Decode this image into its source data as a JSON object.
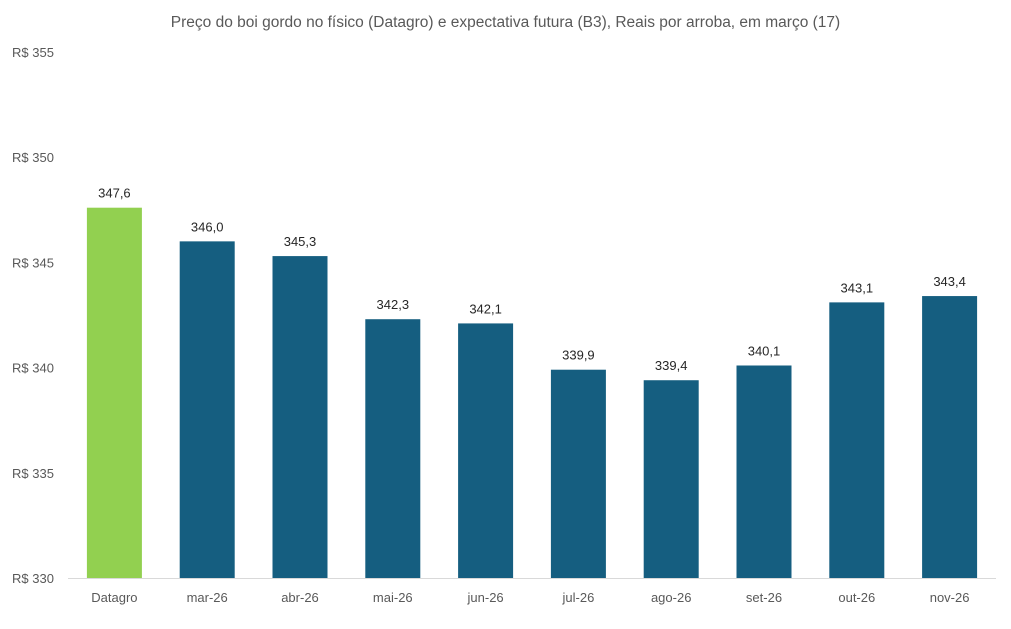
{
  "chart_data": {
    "type": "bar",
    "title": "Preço do boi gordo no físico (Datagro)  e expectativa futura (B3), Reais por arroba, em março (17)",
    "xlabel": "",
    "ylabel": "",
    "ylim": [
      330,
      355
    ],
    "yticks": [
      330,
      335,
      340,
      345,
      350,
      355
    ],
    "ytick_labels": [
      "R$ 330",
      "R$ 335",
      "R$ 340",
      "R$ 345",
      "R$ 350",
      "R$ 355"
    ],
    "categories": [
      "Datagro",
      "mar-26",
      "abr-26",
      "mai-26",
      "jun-26",
      "jul-26",
      "ago-26",
      "set-26",
      "out-26",
      "nov-26"
    ],
    "values": [
      347.6,
      346.0,
      345.3,
      342.3,
      342.1,
      339.9,
      339.4,
      340.1,
      343.1,
      343.4
    ],
    "value_labels": [
      "347,6",
      "346,0",
      "345,3",
      "342,3",
      "342,1",
      "339,9",
      "339,4",
      "340,1",
      "343,1",
      "343,4"
    ],
    "colors": [
      "#92d050",
      "#155e80",
      "#155e80",
      "#155e80",
      "#155e80",
      "#155e80",
      "#155e80",
      "#155e80",
      "#155e80",
      "#155e80"
    ],
    "grid": false,
    "legend": "none"
  }
}
